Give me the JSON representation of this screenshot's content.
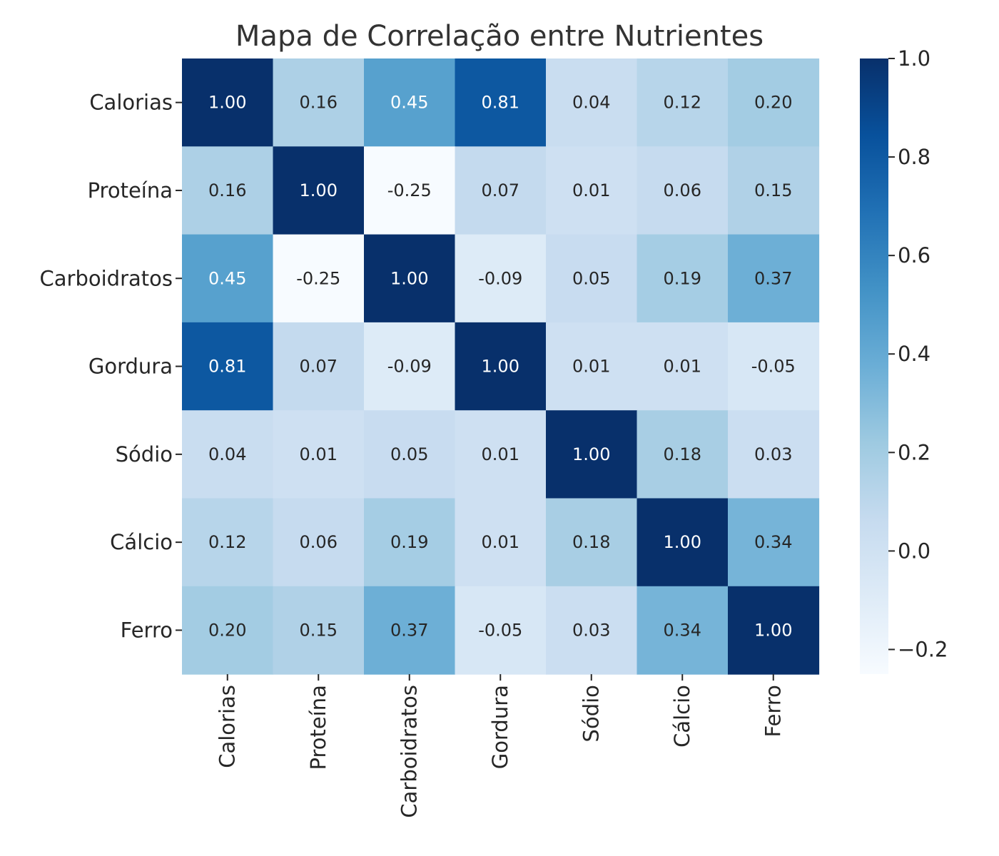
{
  "chart_data": {
    "type": "heatmap",
    "title": "Mapa de Correlação entre Nutrientes",
    "x_categories": [
      "Calorias",
      "Proteína",
      "Carboidratos",
      "Gordura",
      "Sódio",
      "Cálcio",
      "Ferro"
    ],
    "y_categories": [
      "Calorias",
      "Proteína",
      "Carboidratos",
      "Gordura",
      "Sódio",
      "Cálcio",
      "Ferro"
    ],
    "values": [
      [
        1.0,
        0.16,
        0.45,
        0.81,
        0.04,
        0.12,
        0.2
      ],
      [
        0.16,
        1.0,
        -0.25,
        0.07,
        0.01,
        0.06,
        0.15
      ],
      [
        0.45,
        -0.25,
        1.0,
        -0.09,
        0.05,
        0.19,
        0.37
      ],
      [
        0.81,
        0.07,
        -0.09,
        1.0,
        0.01,
        0.01,
        -0.05
      ],
      [
        0.04,
        0.01,
        0.05,
        0.01,
        1.0,
        0.18,
        0.03
      ],
      [
        0.12,
        0.06,
        0.19,
        0.01,
        0.18,
        1.0,
        0.34
      ],
      [
        0.2,
        0.15,
        0.37,
        -0.05,
        0.03,
        0.34,
        1.0
      ]
    ],
    "annotation_format": "0.00",
    "colormap": "Blues",
    "colormap_stops": [
      "#f7fbff",
      "#deebf7",
      "#c6dbef",
      "#9ecae1",
      "#6baed6",
      "#4292c6",
      "#2171b5",
      "#08519c",
      "#08306b"
    ],
    "colorbar": {
      "range": [
        -0.25,
        1.0
      ],
      "ticks": [
        -0.2,
        0.0,
        0.2,
        0.4,
        0.6,
        0.8,
        1.0
      ],
      "tick_labels": [
        "−0.2",
        "0.0",
        "0.2",
        "0.4",
        "0.6",
        "0.8",
        "1.0"
      ],
      "placement": "right"
    },
    "legend": "none",
    "grid": false
  }
}
